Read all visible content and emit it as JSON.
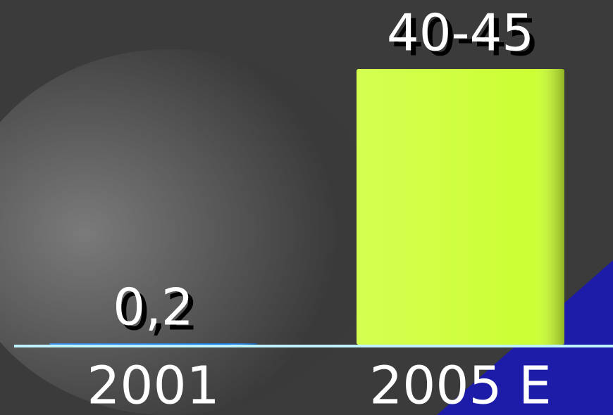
{
  "chart_data": {
    "type": "bar",
    "categories": [
      "2001",
      "2005 E"
    ],
    "series": [
      {
        "colors": [
          "#1a7fe8",
          "#ccff33"
        ],
        "values": [
          0.2,
          42.5
        ],
        "value_labels": [
          "0,2",
          "40-45"
        ]
      }
    ]
  }
}
